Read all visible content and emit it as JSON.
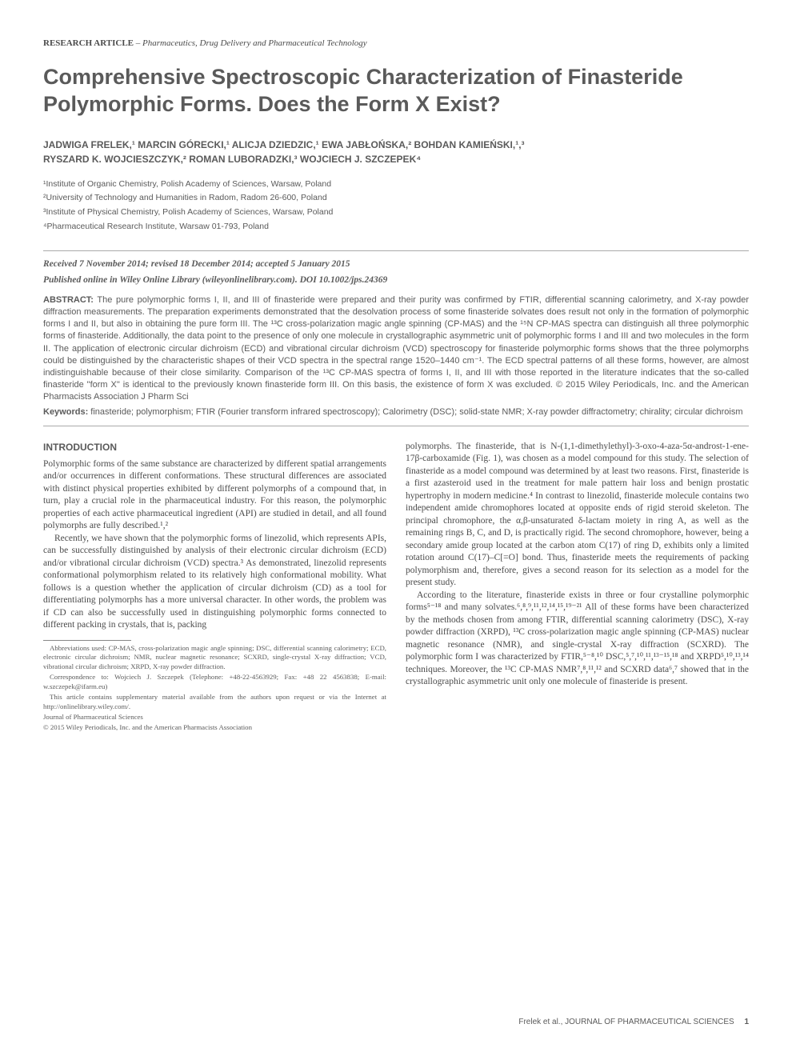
{
  "header": {
    "article_type_label": "RESEARCH ARTICLE",
    "article_type_sep": " – ",
    "article_category": "Pharmaceutics, Drug Delivery and Pharmaceutical Technology"
  },
  "title": "Comprehensive Spectroscopic Characterization of Finasteride Polymorphic Forms. Does the Form X Exist?",
  "authors_line1": "JADWIGA FRELEK,¹ MARCIN GÓRECKI,¹ ALICJA DZIEDZIC,¹ EWA JABŁOŃSKA,² BOHDAN KAMIEŃSKI,¹,³",
  "authors_line2": "RYSZARD K. WOJCIESZCZYK,² ROMAN LUBORADZKI,³ WOJCIECH J. SZCZEPEK⁴",
  "affiliations": {
    "a1": "¹Institute of Organic Chemistry, Polish Academy of Sciences, Warsaw, Poland",
    "a2": "²University of Technology and Humanities in Radom, Radom 26-600, Poland",
    "a3": "³Institute of Physical Chemistry, Polish Academy of Sciences, Warsaw, Poland",
    "a4": "⁴Pharmaceutical Research Institute, Warsaw 01-793, Poland"
  },
  "dates": "Received 7 November 2014; revised 18 December 2014; accepted 5 January 2015",
  "pubinfo": "Published online in Wiley Online Library (wileyonlinelibrary.com). DOI 10.1002/jps.24369",
  "abstract": {
    "label": "ABSTRACT:",
    "text": " The pure polymorphic forms I, II, and III of finasteride were prepared and their purity was confirmed by FTIR, differential scanning calorimetry, and X-ray powder diffraction measurements. The preparation experiments demonstrated that the desolvation process of some finasteride solvates does result not only in the formation of polymorphic forms I and II, but also in obtaining the pure form III. The ¹³C cross-polarization magic angle spinning (CP-MAS) and the ¹⁵N CP-MAS spectra can distinguish all three polymorphic forms of finasteride. Additionally, the data point to the presence of only one molecule in crystallographic asymmetric unit of polymorphic forms I and III and two molecules in the form II. The application of electronic circular dichroism (ECD) and vibrational circular dichroism (VCD) spectroscopy for finasteride polymorphic forms shows that the three polymorphs could be distinguished by the characteristic shapes of their VCD spectra in the spectral range 1520–1440 cm⁻¹. The ECD spectral patterns of all these forms, however, are almost indistinguishable because of their close similarity. Comparison of the ¹³C CP-MAS spectra of forms I, II, and III with those reported in the literature indicates that the so-called finasteride \"form X\" is identical to the previously known finasteride form III. On this basis, the existence of form X was excluded.   © 2015 Wiley Periodicals, Inc. and the American Pharmacists Association J Pharm Sci"
  },
  "keywords": {
    "label": "Keywords:",
    "text": "   finasteride; polymorphism; FTIR (Fourier transform infrared spectroscopy); Calorimetry (DSC); solid-state NMR; X-ray powder diffractometry; chirality; circular dichroism"
  },
  "body": {
    "intro_heading": "INTRODUCTION",
    "left_p1": "Polymorphic forms of the same substance are characterized by different spatial arrangements and/or occurrences in different conformations. These structural differences are associated with distinct physical properties exhibited by different polymorphs of a compound that, in turn, play a crucial role in the pharmaceutical industry. For this reason, the polymorphic properties of each active pharmaceutical ingredient (API) are studied in detail, and all found polymorphs are fully described.¹,²",
    "left_p2": "Recently, we have shown that the polymorphic forms of linezolid, which represents APIs, can be successfully distinguished by analysis of their electronic circular dichroism (ECD) and/or vibrational circular dichroism (VCD) spectra.³ As demonstrated, linezolid represents conformational polymorphism related to its relatively high conformational mobility. What follows is a question whether the application of circular dichroism (CD) as a tool for differentiating polymorphs has a more universal character. In other words, the problem was if CD can also be successfully used in distinguishing polymorphic forms connected to different packing in crystals, that is, packing",
    "right_p1": "polymorphs. The finasteride, that is N-(1,1-dimethylethyl)-3-oxo-4-aza-5α-androst-1-ene-17β-carboxamide (Fig. 1), was chosen as a model compound for this study. The selection of finasteride as a model compound was determined by at least two reasons. First, finasteride is a first azasteroid used in the treatment for male pattern hair loss and benign prostatic hypertrophy in modern medicine.⁴ In contrast to linezolid, finasteride molecule contains two independent amide chromophores located at opposite ends of rigid steroid skeleton. The principal chromophore, the α,β-unsaturated δ-lactam moiety in ring A, as well as the remaining rings B, C, and D, is practically rigid. The second chromophore, however, being a secondary amide group located at the carbon atom C(17) of ring D, exhibits only a limited rotation around C(17)–C[=O] bond. Thus, finasteride meets the requirements of packing polymorphism and, therefore, gives a second reason for its selection as a model for the present study.",
    "right_p2": "According to the literature, finasteride exists in three or four crystalline polymorphic forms⁵⁻¹⁸ and many solvates.⁶,⁸,⁹,¹¹,¹²,¹⁴,¹⁵,¹⁹⁻²¹ All of these forms have been characterized by the methods chosen from among FTIR, differential scanning calorimetry (DSC), X-ray powder diffraction (XRPD), ¹³C cross-polarization magic angle spinning (CP-MAS) nuclear magnetic resonance (NMR), and single-crystal X-ray diffraction (SCXRD). The polymorphic form I was characterized by FTIR,⁵⁻⁸,¹⁰ DSC,⁵,⁷,¹⁰,¹¹,¹³⁻¹⁵,¹⁸ and XRPD⁵,¹⁰,¹³,¹⁴ techniques. Moreover, the ¹³C CP-MAS NMR⁷,⁸,¹¹,¹² and SCXRD data⁶,⁷ showed that in the crystallographic asymmetric unit only one molecule of finasteride is present."
  },
  "footnotes": {
    "abbrev": "Abbreviations used: CP-MAS, cross-polarization magic angle spinning; DSC, differential scanning calorimetry; ECD, electronic circular dichroism; NMR, nuclear magnetic resonance; SCXRD, single-crystal X-ray diffraction; VCD, vibrational circular dichroism; XRPD, X-ray powder diffraction.",
    "corr": "Correspondence to: Wojciech J. Szczepek (Telephone: +48-22-4563929; Fax: +48 22 4563838; E-mail: w.szczepek@ifarm.eu)",
    "supp": "This article contains supplementary material available from the authors upon request or via the Internet at http://onlinelibrary.wiley.com/.",
    "journal": "Journal of Pharmaceutical Sciences",
    "copyright": "© 2015 Wiley Periodicals, Inc. and the American Pharmacists Association"
  },
  "footer": {
    "citation": "Frelek et al., JOURNAL OF PHARMACEUTICAL SCIENCES",
    "page": "1"
  },
  "colors": {
    "text": "#4a4a4a",
    "heading": "#5a5a5a",
    "rule": "#aaaaaa",
    "bg": "#ffffff"
  }
}
